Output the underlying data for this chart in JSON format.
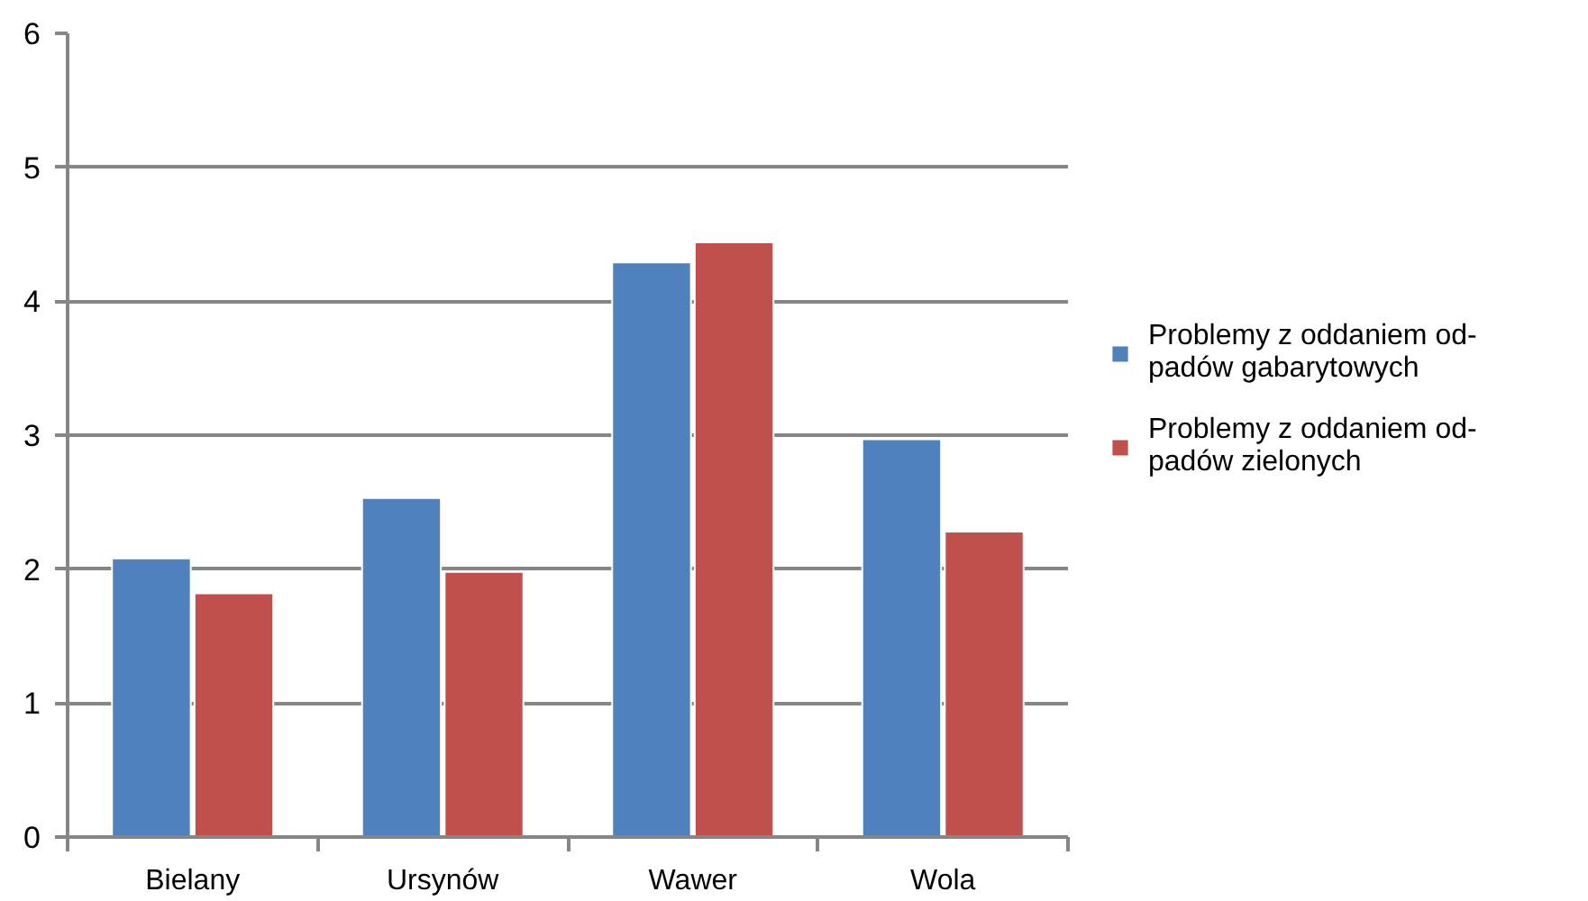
{
  "chart_data": {
    "type": "bar",
    "categories": [
      "Bielany",
      "Ursynów",
      "Wawer",
      "Wola"
    ],
    "series": [
      {
        "name": "Problemy z oddaniem od-\npadów gabarytowych",
        "color": "#4f81bd",
        "values": [
          2.08,
          2.53,
          4.29,
          2.97
        ]
      },
      {
        "name": "Problemy z oddaniem od-\npadów zielonych",
        "color": "#c0504d",
        "values": [
          1.82,
          1.98,
          4.44,
          2.28
        ]
      }
    ],
    "ylim": [
      0,
      6
    ],
    "yticks": [
      0,
      1,
      2,
      3,
      4,
      5,
      6
    ],
    "grid": "y",
    "legend": "right"
  }
}
